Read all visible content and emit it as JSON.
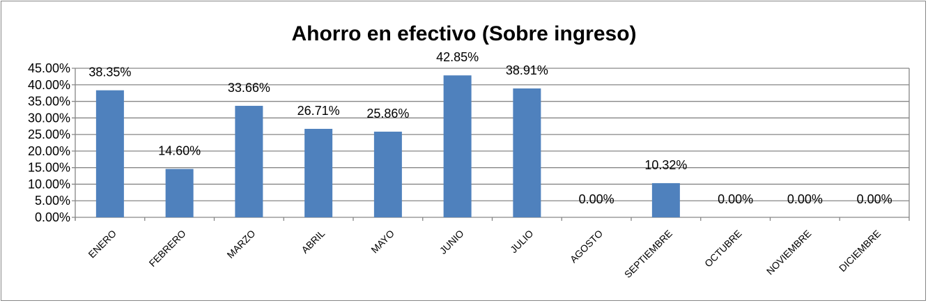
{
  "chart_data": {
    "type": "bar",
    "title": "Ahorro en efectivo (Sobre ingreso)",
    "categories": [
      "ENERO",
      "FEBRERO",
      "MARZO",
      "ABRIL",
      "MAYO",
      "JUNIO",
      "JULIO",
      "AGOSTO",
      "SEPTIEMBRE",
      "OCTUBRE",
      "NOVIEMBRE",
      "DICIEMBRE"
    ],
    "values": [
      38.35,
      14.6,
      33.66,
      26.71,
      25.86,
      42.85,
      38.91,
      0.0,
      10.32,
      0.0,
      0.0,
      0.0
    ],
    "data_labels": [
      "38.35%",
      "14.60%",
      "33.66%",
      "26.71%",
      "25.86%",
      "42.85%",
      "38.91%",
      "0.00%",
      "10.32%",
      "0.00%",
      "0.00%",
      "0.00%"
    ],
    "y_ticks": [
      "0.00%",
      "5.00%",
      "10.00%",
      "15.00%",
      "20.00%",
      "25.00%",
      "30.00%",
      "35.00%",
      "40.00%",
      "45.00%"
    ],
    "ylim": [
      0,
      45
    ],
    "grid": true,
    "legend": "none",
    "bar_color": "#4f81bd",
    "xlabel": "",
    "ylabel": ""
  }
}
